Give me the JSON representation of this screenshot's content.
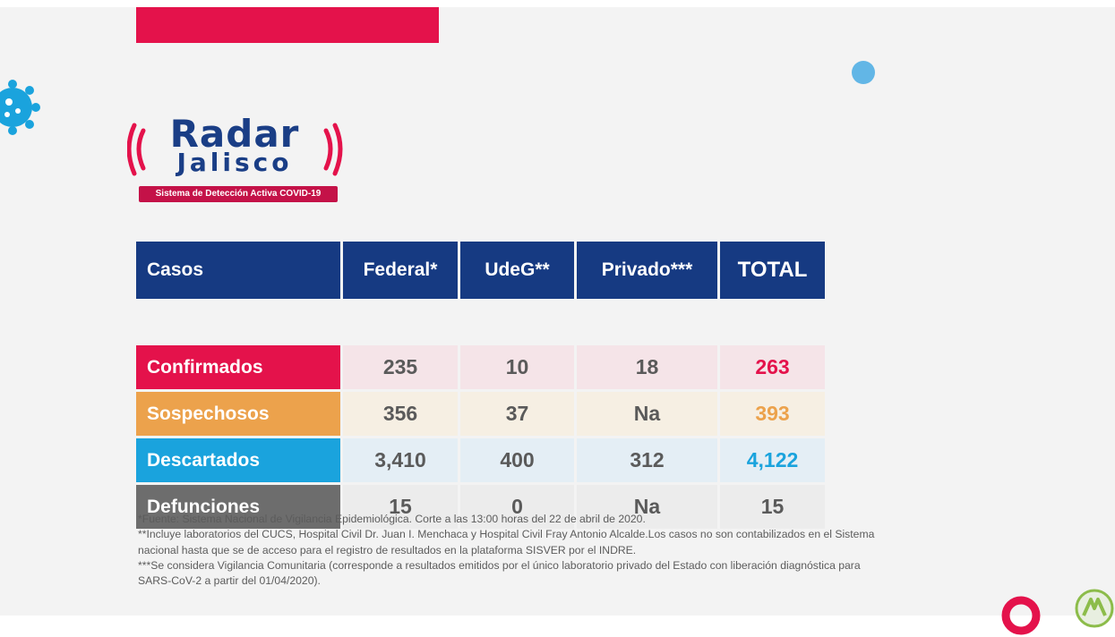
{
  "logo": {
    "title": "Radar",
    "subtitle": "Jalisco",
    "tagline": "Sistema de Detección Activa COVID-19"
  },
  "table": {
    "headers": [
      "Casos",
      "Federal*",
      "UdeG**",
      "Privado***",
      "TOTAL"
    ],
    "rows": [
      {
        "label": "Confirmados",
        "federal": "235",
        "udeg": "10",
        "privado": "18",
        "total": "263"
      },
      {
        "label": "Sospechosos",
        "federal": "356",
        "udeg": "37",
        "privado": "Na",
        "total": "393"
      },
      {
        "label": "Descartados",
        "federal": "3,410",
        "udeg": "400",
        "privado": "312",
        "total": "4,122"
      },
      {
        "label": "Defunciones",
        "federal": "15",
        "udeg": "0",
        "privado": "Na",
        "total": "15"
      }
    ]
  },
  "footnotes": [
    "*Fuente: Sistema Nacional de Vigilancia Epidemiológica. Corte a las 13:00 horas del 22 de abril de 2020.",
    "**Incluye laboratorios del CUCS, Hospital Civil Dr. Juan I. Menchaca y Hospital Civil Fray Antonio Alcalde.Los casos no son contabilizados en el Sistema nacional hasta que se de acceso para el registro de resultados en la plataforma SISVER por el INDRE.",
    "***Se considera Vigilancia Comunitaria (corresponde a resultados emitidos por el único laboratorio privado del Estado con liberación diagnóstica para SARS-CoV-2 a partir del 01/04/2020)."
  ],
  "colors": {
    "navy": "#163a82",
    "confirmados": "#e4124b",
    "sospechosos": "#eca24c",
    "descartados": "#1aa3dd",
    "defunciones": "#6d6d6d"
  }
}
